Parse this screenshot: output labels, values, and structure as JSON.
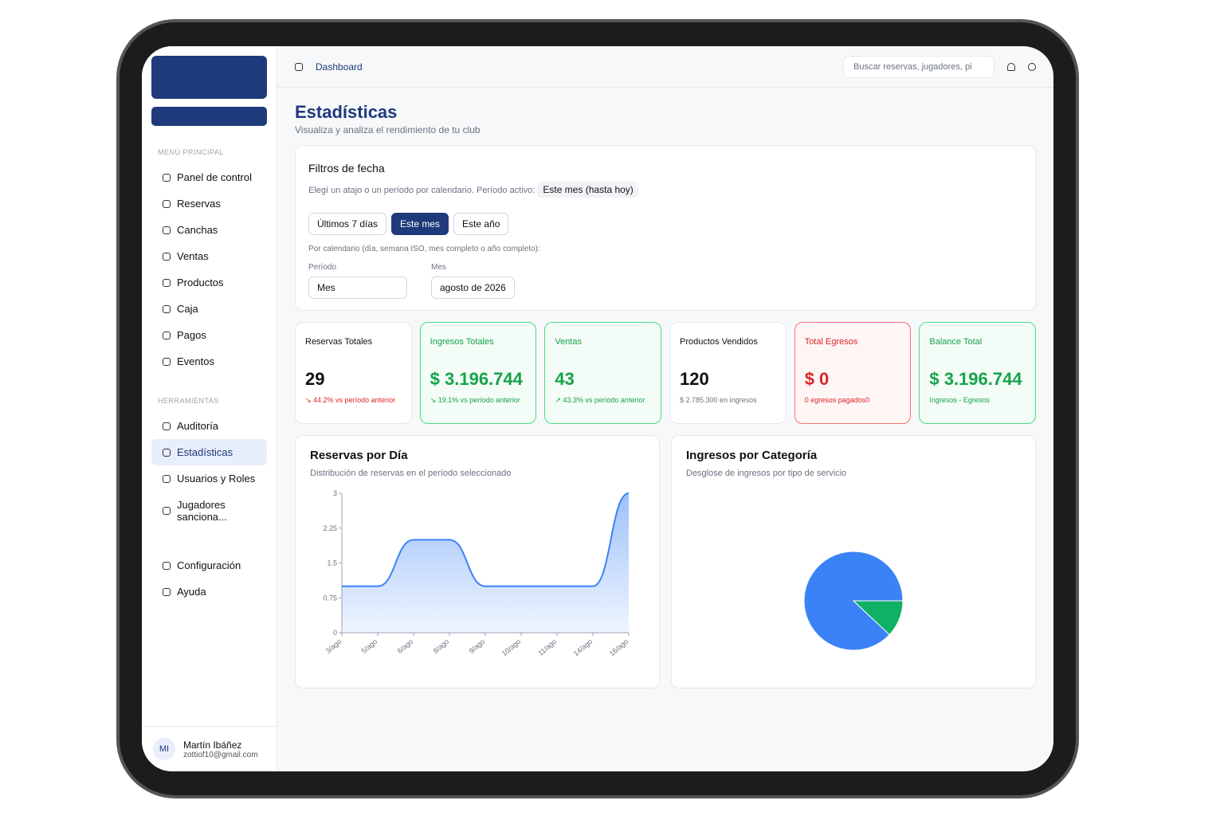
{
  "sidebar": {
    "menu_label": "MENÚ PRINCIPAL",
    "menu": [
      "Panel de control",
      "Reservas",
      "Canchas",
      "Ventas",
      "Productos",
      "Caja",
      "Pagos",
      "Eventos"
    ],
    "tools_label": "HERRAMIENTAS",
    "tools": [
      "Auditoría",
      "Estadísticas",
      "Usuarios y Roles",
      "Jugadores sanciona..."
    ],
    "bottom": [
      "Configuración",
      "Ayuda"
    ],
    "user": {
      "initials": "MI",
      "name": "Martín Ibáñez",
      "email": "zottiof10@gmail.com"
    }
  },
  "header": {
    "breadcrumb": "Dashboard",
    "search_placeholder": "Buscar reservas, jugadores, pi"
  },
  "page": {
    "title": "Estadísticas",
    "subtitle": "Visualiza y analiza el rendimiento de tu club"
  },
  "filters": {
    "title": "Filtros de fecha",
    "description": "Elegí un atajo o un período por calendario. Período activo:",
    "active": "Este mes (hasta hoy)",
    "shortcuts": [
      "Últimos 7 días",
      "Este mes",
      "Este año"
    ],
    "calendar_note": "Por calendario (día, semana ISO, mes completo o año completo):",
    "period_label": "Período",
    "period_value": "Mes",
    "month_label": "Mes",
    "month_value": "agosto de 2026"
  },
  "kpis": [
    {
      "title": "Reservas Totales",
      "value": "29",
      "note": "↘ 44.2% vs período anterior"
    },
    {
      "title": "Ingresos Totales",
      "value": "$ 3.196.744",
      "note": "↘ 19.1% vs período anterior"
    },
    {
      "title": "Ventas",
      "value": "43",
      "note": "↗ 43.3% vs período anterior"
    },
    {
      "title": "Productos Vendidos",
      "value": "120",
      "note": "$ 2.785.300 en ingresos"
    },
    {
      "title": "Total Egresos",
      "value": "$ 0",
      "note": "0 egresos pagados0"
    },
    {
      "title": "Balance Total",
      "value": "$ 3.196.744",
      "note": "Ingresos - Egresos"
    }
  ],
  "chart_data": [
    {
      "type": "area",
      "title": "Reservas por Día",
      "subtitle": "Distribución de reservas en el período seleccionado",
      "categories": [
        "3/ago",
        "5/ago",
        "6/ago",
        "8/ago",
        "9/ago",
        "10/ago",
        "11/ago",
        "14/ago",
        "16/ago"
      ],
      "values": [
        1,
        1,
        2,
        2,
        1,
        1,
        1,
        1,
        3
      ],
      "color": "#3b82f6",
      "ylim": [
        0,
        3
      ],
      "yticks": [
        0,
        0.75,
        1.5,
        2.25,
        3
      ]
    },
    {
      "type": "pie",
      "title": "Ingresos por Categoría",
      "subtitle": "Desglose de ingresos por tipo de servicio",
      "values": [
        88,
        12
      ],
      "colors": [
        "#3b82f6",
        "#10b065"
      ]
    }
  ]
}
